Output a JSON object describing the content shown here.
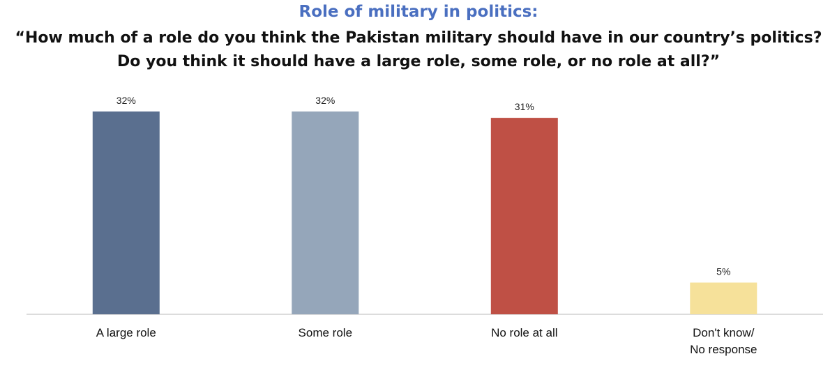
{
  "chart_data": {
    "type": "bar",
    "title": "Role of military in politics:",
    "subtitle": "“How much of a role do you think the Pakistan military should have in our country’s politics? Do you think it should have a large role, some role, or no role at all?”",
    "categories": [
      [
        "A large role"
      ],
      [
        "Some role"
      ],
      [
        "No role at all"
      ],
      [
        "Don't know/",
        "No response"
      ]
    ],
    "values": [
      32,
      32,
      31,
      5
    ],
    "value_labels": [
      "32%",
      "32%",
      "31%",
      "5%"
    ],
    "colors": [
      "#5a6f8f",
      "#95a6ba",
      "#bf5045",
      "#f6e19a"
    ],
    "ylim": [
      0,
      35
    ],
    "grid": false,
    "legend": "none",
    "xlabel": "",
    "ylabel": ""
  }
}
